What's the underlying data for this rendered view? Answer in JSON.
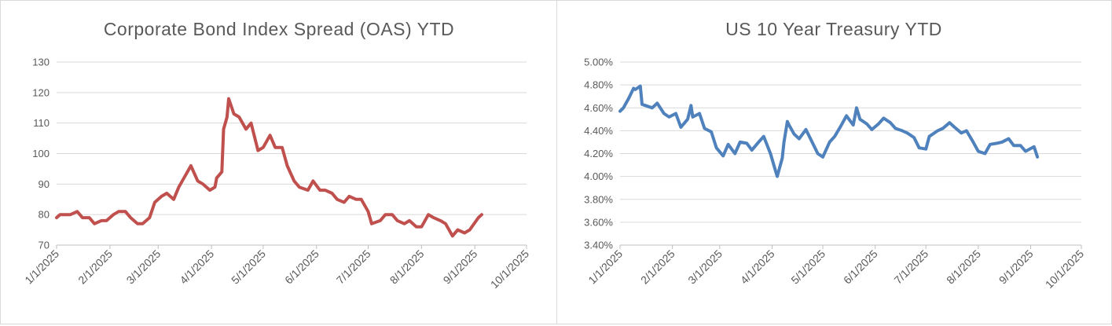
{
  "chart_data": [
    {
      "type": "line",
      "title": "Corporate Bond Index Spread (OAS) YTD",
      "xlabel": "",
      "ylabel": "",
      "x_ticks": [
        "1/1/2025",
        "2/1/2025",
        "3/1/2025",
        "4/1/2025",
        "5/1/2025",
        "6/1/2025",
        "7/1/2025",
        "8/1/2025",
        "9/1/2025",
        "10/1/2025"
      ],
      "y_ticks": [
        "70",
        "80",
        "90",
        "100",
        "110",
        "120",
        "130"
      ],
      "ylim": [
        70,
        130
      ],
      "xlim": [
        "2025-01-01",
        "2025-10-01"
      ],
      "grid": true,
      "color": "#c0504d",
      "series": [
        {
          "x": [
            "2025-01-01",
            "2025-01-03",
            "2025-01-06",
            "2025-01-09",
            "2025-01-13",
            "2025-01-16",
            "2025-01-20",
            "2025-01-23",
            "2025-01-27",
            "2025-01-30",
            "2025-02-03",
            "2025-02-06",
            "2025-02-10",
            "2025-02-13",
            "2025-02-17",
            "2025-02-20",
            "2025-02-24",
            "2025-02-27",
            "2025-03-03",
            "2025-03-06",
            "2025-03-10",
            "2025-03-13",
            "2025-03-17",
            "2025-03-20",
            "2025-03-24",
            "2025-03-27",
            "2025-03-31",
            "2025-04-03",
            "2025-04-04",
            "2025-04-07",
            "2025-04-08",
            "2025-04-10",
            "2025-04-11",
            "2025-04-14",
            "2025-04-17",
            "2025-04-21",
            "2025-04-24",
            "2025-04-28",
            "2025-05-01",
            "2025-05-05",
            "2025-05-08",
            "2025-05-12",
            "2025-05-15",
            "2025-05-19",
            "2025-05-22",
            "2025-05-27",
            "2025-05-30",
            "2025-06-03",
            "2025-06-06",
            "2025-06-10",
            "2025-06-13",
            "2025-06-17",
            "2025-06-20",
            "2025-06-24",
            "2025-06-27",
            "2025-07-01",
            "2025-07-03",
            "2025-07-08",
            "2025-07-11",
            "2025-07-15",
            "2025-07-18",
            "2025-07-22",
            "2025-07-25",
            "2025-07-29",
            "2025-08-01",
            "2025-08-05",
            "2025-08-08",
            "2025-08-12",
            "2025-08-15",
            "2025-08-19",
            "2025-08-22",
            "2025-08-26",
            "2025-08-29",
            "2025-09-03",
            "2025-09-05"
          ],
          "values": [
            79,
            80,
            80,
            80,
            81,
            79,
            79,
            77,
            78,
            78,
            80,
            81,
            81,
            79,
            77,
            77,
            79,
            84,
            86,
            87,
            85,
            89,
            93,
            96,
            91,
            90,
            88,
            89,
            92,
            94,
            108,
            112,
            118,
            113,
            112,
            108,
            110,
            101,
            102,
            106,
            102,
            102,
            96,
            91,
            89,
            88,
            91,
            88,
            88,
            87,
            85,
            84,
            86,
            85,
            85,
            81,
            77,
            78,
            80,
            80,
            78,
            77,
            78,
            76,
            76,
            80,
            79,
            78,
            77,
            73,
            75,
            74,
            75,
            79,
            80
          ]
        }
      ]
    },
    {
      "type": "line",
      "title": "US 10 Year Treasury YTD",
      "xlabel": "",
      "ylabel": "",
      "x_ticks": [
        "1/1/2025",
        "2/1/2025",
        "3/1/2025",
        "4/1/2025",
        "5/1/2025",
        "6/1/2025",
        "7/1/2025",
        "8/1/2025",
        "9/1/2025",
        "10/1/2025"
      ],
      "y_ticks": [
        "3.40%",
        "3.60%",
        "3.80%",
        "4.00%",
        "4.20%",
        "4.40%",
        "4.60%",
        "4.80%",
        "5.00%"
      ],
      "ylim": [
        3.4,
        5.0
      ],
      "xlim": [
        "2025-01-01",
        "2025-10-01"
      ],
      "grid": true,
      "color": "#4f81bd",
      "series": [
        {
          "x": [
            "2025-01-01",
            "2025-01-03",
            "2025-01-06",
            "2025-01-09",
            "2025-01-10",
            "2025-01-13",
            "2025-01-14",
            "2025-01-16",
            "2025-01-20",
            "2025-01-23",
            "2025-01-27",
            "2025-01-30",
            "2025-02-03",
            "2025-02-06",
            "2025-02-10",
            "2025-02-12",
            "2025-02-13",
            "2025-02-17",
            "2025-02-20",
            "2025-02-24",
            "2025-02-27",
            "2025-03-03",
            "2025-03-06",
            "2025-03-10",
            "2025-03-13",
            "2025-03-17",
            "2025-03-20",
            "2025-03-24",
            "2025-03-27",
            "2025-03-31",
            "2025-04-03",
            "2025-04-04",
            "2025-04-07",
            "2025-04-08",
            "2025-04-10",
            "2025-04-11",
            "2025-04-14",
            "2025-04-17",
            "2025-04-21",
            "2025-04-24",
            "2025-04-28",
            "2025-05-01",
            "2025-05-05",
            "2025-05-08",
            "2025-05-12",
            "2025-05-15",
            "2025-05-19",
            "2025-05-21",
            "2025-05-23",
            "2025-05-27",
            "2025-05-30",
            "2025-06-03",
            "2025-06-06",
            "2025-06-10",
            "2025-06-13",
            "2025-06-17",
            "2025-06-20",
            "2025-06-24",
            "2025-06-27",
            "2025-07-01",
            "2025-07-03",
            "2025-07-08",
            "2025-07-11",
            "2025-07-15",
            "2025-07-18",
            "2025-07-22",
            "2025-07-25",
            "2025-07-29",
            "2025-08-01",
            "2025-08-05",
            "2025-08-08",
            "2025-08-12",
            "2025-08-15",
            "2025-08-19",
            "2025-08-22",
            "2025-08-26",
            "2025-08-29",
            "2025-09-03",
            "2025-09-05"
          ],
          "values": [
            4.57,
            4.6,
            4.68,
            4.77,
            4.76,
            4.79,
            4.63,
            4.62,
            4.6,
            4.64,
            4.55,
            4.52,
            4.55,
            4.43,
            4.5,
            4.62,
            4.52,
            4.55,
            4.42,
            4.39,
            4.25,
            4.18,
            4.28,
            4.2,
            4.3,
            4.29,
            4.23,
            4.3,
            4.35,
            4.2,
            4.05,
            4.0,
            4.16,
            4.3,
            4.48,
            4.45,
            4.37,
            4.33,
            4.41,
            4.32,
            4.2,
            4.17,
            4.3,
            4.35,
            4.45,
            4.53,
            4.45,
            4.6,
            4.5,
            4.46,
            4.41,
            4.46,
            4.51,
            4.47,
            4.42,
            4.4,
            4.38,
            4.34,
            4.25,
            4.24,
            4.35,
            4.4,
            4.42,
            4.47,
            4.43,
            4.38,
            4.4,
            4.3,
            4.22,
            4.2,
            4.28,
            4.29,
            4.3,
            4.33,
            4.27,
            4.27,
            4.22,
            4.26,
            4.17
          ]
        }
      ]
    }
  ]
}
